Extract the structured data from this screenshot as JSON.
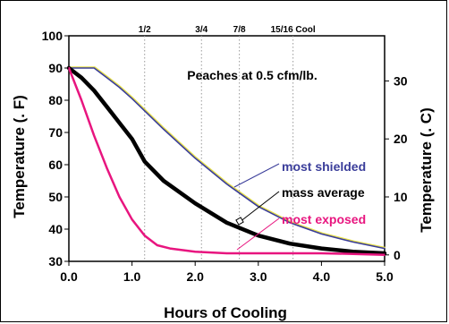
{
  "chart_data": {
    "type": "line",
    "title": "",
    "annotation": "Peaches at 0.5 cfm/lb.",
    "xlabel": "Hours of Cooling",
    "ylabel": "Temperature (. F)",
    "ylabel_right": "Temperature (. C)",
    "xlim": [
      0,
      5
    ],
    "ylim": [
      30,
      100
    ],
    "ylim_right": [
      -1.11,
      37.78
    ],
    "x_ticks": [
      "0.0",
      "1.0",
      "2.0",
      "3.0",
      "4.0",
      "5.0"
    ],
    "x_tick_values": [
      0,
      1,
      2,
      3,
      4,
      5
    ],
    "y_ticks": [
      "30",
      "40",
      "50",
      "60",
      "70",
      "80",
      "90",
      "100"
    ],
    "y_tick_values": [
      30,
      40,
      50,
      60,
      70,
      80,
      90,
      100
    ],
    "y_right_ticks": [
      "0",
      "10",
      "20",
      "30"
    ],
    "y_right_tick_values": [
      0,
      10,
      20,
      30
    ],
    "grid": "vertical dotted lines at cooling fractions",
    "cooling_fractions": [
      {
        "label": "1/2",
        "x": 1.2
      },
      {
        "label": "3/4",
        "x": 2.1
      },
      {
        "label": "7/8",
        "x": 2.7
      },
      {
        "label": "15/16 Cool",
        "x": 3.55
      }
    ],
    "series": [
      {
        "name": "most shielded",
        "color": "#3a3d9a",
        "x": [
          0.0,
          0.2,
          0.4,
          0.6,
          0.8,
          1.0,
          1.5,
          2.0,
          2.5,
          3.0,
          3.5,
          4.0,
          4.5,
          5.0
        ],
        "y": [
          90,
          90,
          90,
          87,
          84,
          80.5,
          71,
          62,
          54,
          47,
          42,
          38.5,
          36,
          34
        ]
      },
      {
        "name": "mass average",
        "color": "#000000",
        "x": [
          0.0,
          0.2,
          0.4,
          0.6,
          0.8,
          1.0,
          1.2,
          1.5,
          2.0,
          2.5,
          3.0,
          3.5,
          4.0,
          4.5,
          5.0
        ],
        "y": [
          90,
          87,
          83,
          78,
          73,
          68,
          61,
          55,
          48,
          42,
          38,
          35.5,
          34,
          33,
          32.5
        ]
      },
      {
        "name": "most exposed",
        "color": "#e8157f",
        "x": [
          0.0,
          0.2,
          0.4,
          0.6,
          0.8,
          1.0,
          1.2,
          1.4,
          1.6,
          2.0,
          2.5,
          3.0,
          3.5,
          4.0,
          4.5,
          5.0
        ],
        "y": [
          90,
          80,
          69,
          59,
          50,
          43,
          38,
          35,
          34,
          33,
          32.5,
          32.5,
          32.5,
          32.5,
          32.3,
          32
        ]
      }
    ]
  }
}
